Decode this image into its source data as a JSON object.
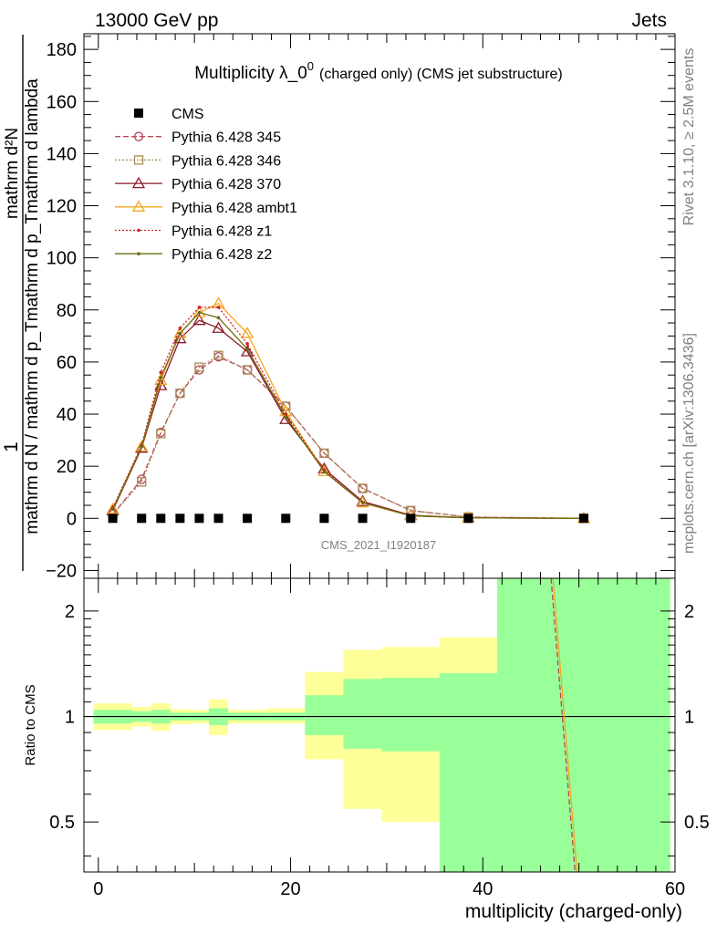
{
  "header": {
    "energy_label": "13000 GeV pp",
    "category_label": "Jets"
  },
  "side_labels": {
    "rivet": "Rivet 3.1.10, ≥ 2.5M events",
    "mcplots": "mcplots.cern.ch [arXiv:1306.3436]"
  },
  "watermark": "CMS_2021_I1920187",
  "colors": {
    "ratio_band_inner": "#99ff99",
    "ratio_band_outer": "#ffff99",
    "cms": "#000000",
    "p345": "#b5485a",
    "p346": "#a88a55",
    "p370": "#8b1a2a",
    "ambt1": "#f5a623",
    "z1": "#d62020",
    "z2": "#6b6b10"
  },
  "chart_data": [
    {
      "type": "line",
      "title_main": "Multiplicity λ_0",
      "title_sup": "0",
      "title_sub": "(charged only) (CMS jet substructure)",
      "ylabel_lines": [
        "1",
        "mathrm d N / mathrm d p_Tmathrm d p_Tmathrm d lambda",
        "mathrm d²N"
      ],
      "xlim": [
        -1.5,
        60
      ],
      "ylim": [
        -23,
        186
      ],
      "yticks": [
        -20,
        0,
        20,
        40,
        60,
        80,
        100,
        120,
        140,
        160,
        180
      ],
      "ytick_labels": [
        "−20",
        "0",
        "20",
        "40",
        "60",
        "80",
        "100",
        "120",
        "140",
        "160",
        "180"
      ],
      "legend_position": "top-left",
      "series": [
        {
          "name": "CMS",
          "style": "square",
          "dashed": "none",
          "x": [
            1.5,
            4.5,
            6.5,
            8.5,
            10.5,
            12.5,
            15.5,
            19.5,
            23.5,
            27.5,
            32.5,
            38.5,
            50.5
          ],
          "y": [
            0,
            0,
            0,
            0,
            0,
            0,
            0,
            0,
            0,
            0,
            0,
            0,
            0
          ]
        },
        {
          "name": "Pythia 6.428 345",
          "style": "circle-open",
          "dashed": "6,3",
          "x": [
            1.5,
            4.5,
            6.5,
            8.5,
            10.5,
            12.5,
            15.5,
            19.5,
            23.5,
            27.5,
            32.5,
            38.5,
            50.5
          ],
          "y": [
            1.5,
            15,
            33,
            48,
            57,
            62,
            57,
            43,
            25,
            11.5,
            3,
            0.5,
            0
          ]
        },
        {
          "name": "Pythia 6.428 346",
          "style": "square-open",
          "dashed": "2,2",
          "x": [
            1.5,
            4.5,
            6.5,
            8.5,
            10.5,
            12.5,
            15.5,
            19.5,
            23.5,
            27.5,
            32.5,
            38.5,
            50.5
          ],
          "y": [
            1.5,
            14,
            32.5,
            48,
            58,
            62.5,
            57,
            43,
            25,
            11.5,
            3,
            0.5,
            0
          ]
        },
        {
          "name": "Pythia 6.428 370",
          "style": "triangle-open",
          "dashed": "none",
          "x": [
            1.5,
            4.5,
            6.5,
            8.5,
            10.5,
            12.5,
            15.5,
            19.5,
            23.5,
            27.5,
            32.5,
            38.5,
            50.5
          ],
          "y": [
            3,
            27,
            51,
            69,
            76,
            73,
            64,
            38,
            19,
            6.5,
            1.2,
            0.2,
            0
          ]
        },
        {
          "name": "Pythia 6.428 ambt1",
          "style": "triangle-open",
          "dashed": "none",
          "x": [
            1.5,
            4.5,
            6.5,
            8.5,
            10.5,
            12.5,
            15.5,
            19.5,
            23.5,
            27.5,
            32.5,
            38.5,
            50.5
          ],
          "y": [
            3.5,
            27.5,
            53,
            71,
            79,
            82.5,
            71,
            41,
            18,
            6,
            1,
            0.2,
            0
          ]
        },
        {
          "name": "Pythia 6.428 z1",
          "style": "dot",
          "dashed": "2,2",
          "x": [
            1.5,
            4.5,
            6.5,
            8.5,
            10.5,
            12.5,
            15.5,
            19.5,
            23.5,
            27.5,
            32.5,
            38.5,
            50.5
          ],
          "y": [
            4,
            28,
            56,
            73,
            81,
            81,
            67,
            40,
            18.5,
            6,
            1,
            0.2,
            0
          ]
        },
        {
          "name": "Pythia 6.428 z2",
          "style": "dot",
          "dashed": "none",
          "x": [
            1.5,
            4.5,
            6.5,
            8.5,
            10.5,
            12.5,
            15.5,
            19.5,
            23.5,
            27.5,
            32.5,
            38.5,
            50.5
          ],
          "y": [
            3.5,
            27.5,
            54,
            71,
            79,
            77,
            65,
            39,
            18,
            6,
            1,
            0.2,
            0
          ]
        }
      ]
    },
    {
      "type": "area",
      "ylabel": "Ratio to CMS",
      "xlabel": "multiplicity (charged-only)",
      "xlim": [
        -1.5,
        60
      ],
      "ylim": [
        0.36,
        2.48
      ],
      "xticks": [
        0,
        20,
        40,
        60
      ],
      "yticks": [
        0.5,
        1,
        2
      ],
      "ytick_labels": [
        "0.5",
        "1",
        "2"
      ],
      "reference_line": 1,
      "bins": [
        {
          "lo": -0.5,
          "hi": 3.5,
          "inner": [
            0.955,
            1.045
          ],
          "outer": [
            0.915,
            1.09
          ]
        },
        {
          "lo": 3.5,
          "hi": 5.5,
          "inner": [
            0.965,
            1.035
          ],
          "outer": [
            0.935,
            1.065
          ]
        },
        {
          "lo": 5.5,
          "hi": 7.5,
          "inner": [
            0.955,
            1.045
          ],
          "outer": [
            0.91,
            1.09
          ]
        },
        {
          "lo": 7.5,
          "hi": 9.5,
          "inner": [
            0.975,
            1.025
          ],
          "outer": [
            0.95,
            1.05
          ]
        },
        {
          "lo": 9.5,
          "hi": 11.5,
          "inner": [
            0.975,
            1.025
          ],
          "outer": [
            0.955,
            1.045
          ]
        },
        {
          "lo": 11.5,
          "hi": 13.5,
          "inner": [
            0.945,
            1.055
          ],
          "outer": [
            0.885,
            1.12
          ]
        },
        {
          "lo": 13.5,
          "hi": 17.5,
          "inner": [
            0.975,
            1.025
          ],
          "outer": [
            0.955,
            1.045
          ]
        },
        {
          "lo": 17.5,
          "hi": 21.5,
          "inner": [
            0.975,
            1.025
          ],
          "outer": [
            0.955,
            1.055
          ]
        },
        {
          "lo": 21.5,
          "hi": 25.5,
          "inner": [
            0.885,
            1.15
          ],
          "outer": [
            0.755,
            1.34
          ]
        },
        {
          "lo": 25.5,
          "hi": 29.5,
          "inner": [
            0.81,
            1.28
          ],
          "outer": [
            0.545,
            1.55
          ]
        },
        {
          "lo": 29.5,
          "hi": 35.5,
          "inner": [
            0.795,
            1.29
          ],
          "outer": [
            0.5,
            1.58
          ]
        },
        {
          "lo": 35.5,
          "hi": 41.5,
          "inner": [
            0.36,
            1.33
          ],
          "outer": [
            0.36,
            1.68
          ]
        },
        {
          "lo": 41.5,
          "hi": 59.5,
          "inner": [
            0.36,
            2.48
          ],
          "outer": [
            0.36,
            2.48
          ]
        }
      ],
      "series": [
        {
          "name": "Pythia 6.428 ambt1",
          "x": [
            47.3,
            49.8
          ],
          "y": [
            2.48,
            0.36
          ]
        },
        {
          "name": "Pythia 6.428 345",
          "x": [
            47.1,
            49.6
          ],
          "y": [
            2.48,
            0.36
          ]
        }
      ]
    }
  ]
}
